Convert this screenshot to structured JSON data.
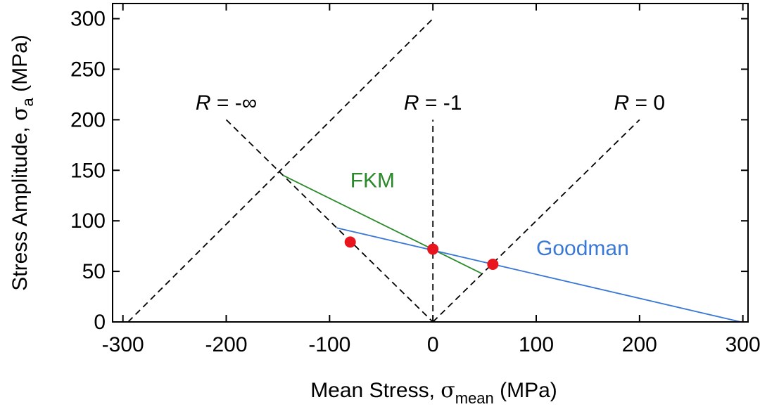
{
  "chart_data": {
    "type": "line",
    "xlabel": {
      "prefix": "Mean Stress, ",
      "symbol": "σ",
      "sub": "mean",
      "suffix": " (MPa)"
    },
    "ylabel": {
      "prefix": "Stress Amplitude, ",
      "symbol": "σ",
      "sub": "a",
      "suffix": " (MPa)"
    },
    "xlim": [
      -310,
      305
    ],
    "ylim": [
      0,
      315
    ],
    "xticks": [
      -300,
      -200,
      -100,
      0,
      100,
      200,
      300
    ],
    "xtick_labels": [
      "-300",
      "-200",
      "-100",
      "0",
      "100",
      "200",
      "300"
    ],
    "yticks": [
      0,
      50,
      100,
      150,
      200,
      250,
      300
    ],
    "ytick_labels": [
      "0",
      "50",
      "100",
      "150",
      "200",
      "250",
      "300"
    ],
    "grid": false,
    "reference_lines": [
      {
        "label_var": "R",
        "label_rest": " = -∞",
        "x": [
          -200,
          0
        ],
        "y": [
          200,
          0
        ],
        "label_at": [
          -200,
          210
        ]
      },
      {
        "label_var": "R",
        "label_rest": " = -1",
        "x": [
          0,
          0
        ],
        "y": [
          0,
          200
        ],
        "label_at": [
          0,
          210
        ]
      },
      {
        "label_var": "R",
        "label_rest": " = 0",
        "x": [
          0,
          200
        ],
        "y": [
          0,
          200
        ],
        "label_at": [
          200,
          210
        ]
      },
      {
        "label_var": "",
        "label_rest": "",
        "x": [
          -295,
          0
        ],
        "y": [
          0,
          300
        ],
        "label_at": null
      }
    ],
    "series": [
      {
        "name": "FKM",
        "color": "#2a8a2a",
        "x": [
          -145,
          47
        ],
        "y": [
          145,
          48
        ],
        "label_at": [
          -80,
          133
        ]
      },
      {
        "name": "Goodman",
        "color": "#3a78d6",
        "x": [
          -93,
          298
        ],
        "y": [
          93,
          0
        ],
        "label_at": [
          100,
          66
        ]
      }
    ],
    "points": {
      "color": "#e8141e",
      "x": [
        -80,
        0,
        58
      ],
      "y": [
        79,
        72,
        57
      ]
    }
  }
}
